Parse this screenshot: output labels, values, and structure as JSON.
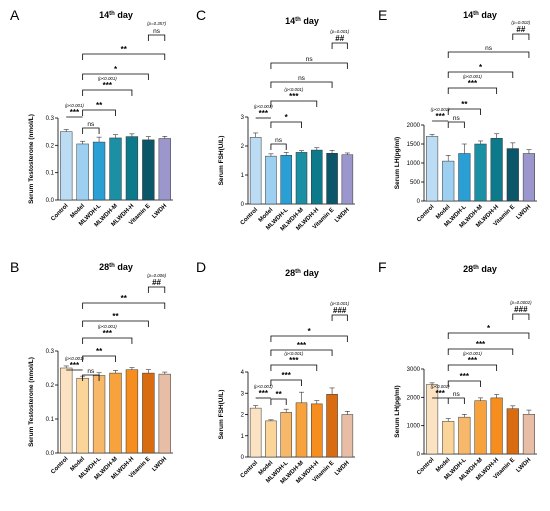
{
  "chart_data": [
    {
      "panel": "A",
      "type": "bar",
      "title": "14th day",
      "title_main": "14",
      "title_sup": "th",
      "title_rest": " day",
      "ylabel": "Serum Testosterone (nmol/L)",
      "categories": [
        "Control",
        "Model",
        "MLWDH-L",
        "MLWDH-M",
        "MLWDH-H",
        "Vitamin E",
        "LWDH"
      ],
      "values": [
        0.25,
        0.205,
        0.212,
        0.227,
        0.232,
        0.22,
        0.225
      ],
      "errors": [
        0.008,
        0.01,
        0.018,
        0.012,
        0.01,
        0.012,
        0.008
      ],
      "ylim": [
        0,
        0.3
      ],
      "yticks": [
        0.0,
        0.1,
        0.2,
        0.3
      ],
      "yticklabels": [
        "0.0",
        "0.1",
        "0.2",
        "0.3"
      ],
      "colors": [
        "#bcdcf4",
        "#9ccff0",
        "#2a9fd6",
        "#1b8fa3",
        "#0d7a8c",
        "#0b5669",
        "#9b97cc"
      ],
      "comparisons": [
        {
          "from": 0,
          "to": 1,
          "text": "***",
          "note": "(p<0.001)"
        },
        {
          "from": 1,
          "to": 2,
          "text": "ns",
          "note": ""
        },
        {
          "from": 1,
          "to": 3,
          "text": "**",
          "note": ""
        },
        {
          "from": 1,
          "to": 4,
          "text": "***",
          "note": "(p<0.001)"
        },
        {
          "from": 1,
          "to": 5,
          "text": "*",
          "note": ""
        },
        {
          "from": 1,
          "to": 6,
          "text": "**",
          "note": ""
        },
        {
          "from": 5,
          "to": 6,
          "text": "ns",
          "note": "(p=0.357)"
        }
      ]
    },
    {
      "panel": "C",
      "type": "bar",
      "title": "14th day",
      "title_main": "14",
      "title_sup": "th",
      "title_rest": " day",
      "ylabel": "Serum FSH(U/L)",
      "categories": [
        "Control",
        "Model",
        "MLWDH-L",
        "MLWDH-M",
        "MLWDH-H",
        "Vitamin E",
        "LWDH"
      ],
      "values": [
        2.3,
        1.65,
        1.68,
        1.78,
        1.86,
        1.75,
        1.7
      ],
      "errors": [
        0.15,
        0.08,
        0.1,
        0.06,
        0.08,
        0.1,
        0.06
      ],
      "ylim": [
        0,
        3
      ],
      "yticks": [
        0,
        1,
        2,
        3
      ],
      "yticklabels": [
        "0",
        "1",
        "2",
        "3"
      ],
      "colors": [
        "#bcdcf4",
        "#9ccff0",
        "#2a9fd6",
        "#1b8fa3",
        "#0d7a8c",
        "#0b5669",
        "#9b97cc"
      ],
      "comparisons": [
        {
          "from": 0,
          "to": 1,
          "text": "***",
          "note": "(p<0.001)"
        },
        {
          "from": 1,
          "to": 2,
          "text": "ns",
          "note": ""
        },
        {
          "from": 1,
          "to": 3,
          "text": "*",
          "note": ""
        },
        {
          "from": 1,
          "to": 4,
          "text": "***",
          "note": "(p<0.001)"
        },
        {
          "from": 1,
          "to": 5,
          "text": "ns",
          "note": ""
        },
        {
          "from": 1,
          "to": 6,
          "text": "ns",
          "note": ""
        },
        {
          "from": 5,
          "to": 6,
          "text": "##",
          "note": "(p=0.001)"
        }
      ]
    },
    {
      "panel": "E",
      "type": "bar",
      "title": "14th day",
      "title_main": "14",
      "title_sup": "th",
      "title_rest": " day",
      "ylabel": "Serum LH(pg/ml)",
      "categories": [
        "Control",
        "Model",
        "MLWDH-L",
        "MLWDH-M",
        "MLWDH-H",
        "Vitamin E",
        "LWDH"
      ],
      "values": [
        1700,
        1050,
        1250,
        1500,
        1650,
        1380,
        1250
      ],
      "errors": [
        50,
        150,
        250,
        80,
        120,
        150,
        100
      ],
      "ylim": [
        0,
        2000
      ],
      "yticks": [
        0,
        500,
        1000,
        1500,
        2000
      ],
      "yticklabels": [
        "0",
        "500",
        "1000",
        "1500",
        "2000"
      ],
      "colors": [
        "#bcdcf4",
        "#9ccff0",
        "#2a9fd6",
        "#1b8fa3",
        "#0d7a8c",
        "#0b5669",
        "#9b97cc"
      ],
      "comparisons": [
        {
          "from": 0,
          "to": 1,
          "text": "***",
          "note": "(p<0.001)"
        },
        {
          "from": 1,
          "to": 2,
          "text": "ns",
          "note": ""
        },
        {
          "from": 1,
          "to": 3,
          "text": "**",
          "note": ""
        },
        {
          "from": 1,
          "to": 4,
          "text": "***",
          "note": "(p<0.001)"
        },
        {
          "from": 1,
          "to": 5,
          "text": "*",
          "note": ""
        },
        {
          "from": 1,
          "to": 6,
          "text": "ns",
          "note": ""
        },
        {
          "from": 5,
          "to": 6,
          "text": "##",
          "note": "(p=0.002)"
        }
      ]
    },
    {
      "panel": "B",
      "type": "bar",
      "title": "28th day",
      "title_main": "28",
      "title_sup": "th",
      "title_rest": " day",
      "ylabel": "Serum Testosterone (nmol/L)",
      "categories": [
        "Control",
        "Model",
        "MLWDH-L",
        "MLWDH-M",
        "MLWDH-H",
        "Vitamin E",
        "LWDH"
      ],
      "values": [
        0.25,
        0.22,
        0.228,
        0.235,
        0.245,
        0.235,
        0.232
      ],
      "errors": [
        0.006,
        0.006,
        0.008,
        0.008,
        0.006,
        0.01,
        0.006
      ],
      "ylim": [
        0,
        0.3
      ],
      "yticks": [
        0.0,
        0.1,
        0.2,
        0.3
      ],
      "yticklabels": [
        "0.0",
        "0.1",
        "0.2",
        "0.3"
      ],
      "colors": [
        "#fbe2c2",
        "#fbd49a",
        "#f8b86a",
        "#f7a23c",
        "#f58d1f",
        "#d96c10",
        "#e7bda6"
      ],
      "comparisons": [
        {
          "from": 0,
          "to": 1,
          "text": "***",
          "note": "(p<0.001)"
        },
        {
          "from": 1,
          "to": 2,
          "text": "ns",
          "note": ""
        },
        {
          "from": 1,
          "to": 3,
          "text": "**",
          "note": ""
        },
        {
          "from": 1,
          "to": 4,
          "text": "***",
          "note": "(p<0.001)"
        },
        {
          "from": 1,
          "to": 5,
          "text": "**",
          "note": ""
        },
        {
          "from": 1,
          "to": 6,
          "text": "**",
          "note": ""
        },
        {
          "from": 5,
          "to": 6,
          "text": "##",
          "note": "(p=0.006)"
        }
      ]
    },
    {
      "panel": "D",
      "type": "bar",
      "title": "28th day",
      "title_main": "28",
      "title_sup": "th",
      "title_rest": " day",
      "ylabel": "Serum FSH(U/L)",
      "categories": [
        "Control",
        "Model",
        "MLWDH-L",
        "MLWDH-M",
        "MLWDH-H",
        "Vitamin E",
        "LWDH"
      ],
      "values": [
        2.3,
        1.7,
        2.1,
        2.55,
        2.5,
        2.95,
        2.0
      ],
      "errors": [
        0.12,
        0.05,
        0.15,
        0.5,
        0.15,
        0.3,
        0.15
      ],
      "ylim": [
        0,
        4
      ],
      "yticks": [
        0,
        1,
        2,
        3,
        4
      ],
      "yticklabels": [
        "0",
        "1",
        "2",
        "3",
        "4"
      ],
      "colors": [
        "#fbe2c2",
        "#fbd49a",
        "#f8b86a",
        "#f7a23c",
        "#f58d1f",
        "#d96c10",
        "#e7bda6"
      ],
      "comparisons": [
        {
          "from": 0,
          "to": 1,
          "text": "***",
          "note": "(p<0.001)"
        },
        {
          "from": 1,
          "to": 2,
          "text": "**",
          "note": ""
        },
        {
          "from": 1,
          "to": 3,
          "text": "***",
          "note": ""
        },
        {
          "from": 1,
          "to": 4,
          "text": "***",
          "note": "(p<0.001)"
        },
        {
          "from": 1,
          "to": 5,
          "text": "***",
          "note": ""
        },
        {
          "from": 1,
          "to": 6,
          "text": "*",
          "note": ""
        },
        {
          "from": 5,
          "to": 6,
          "text": "###",
          "note": "(p<0.001)"
        }
      ]
    },
    {
      "panel": "F",
      "type": "bar",
      "title": "28th day",
      "title_main": "28",
      "title_sup": "th",
      "title_rest": " day",
      "ylabel": "Serum LH(pg/ml)",
      "categories": [
        "Control",
        "Model",
        "MLWDH-L",
        "MLWDH-M",
        "MLWDH-H",
        "Vitamin E",
        "LWDH"
      ],
      "values": [
        2450,
        1150,
        1300,
        1880,
        1980,
        1600,
        1400
      ],
      "errors": [
        60,
        100,
        100,
        100,
        120,
        100,
        150
      ],
      "ylim": [
        0,
        3000
      ],
      "yticks": [
        0,
        1000,
        2000,
        3000
      ],
      "yticklabels": [
        "0",
        "1000",
        "2000",
        "3000"
      ],
      "colors": [
        "#fbe2c2",
        "#fbd49a",
        "#f8b86a",
        "#f7a23c",
        "#f58d1f",
        "#d96c10",
        "#e7bda6"
      ],
      "comparisons": [
        {
          "from": 0,
          "to": 1,
          "text": "***",
          "note": "(p<0.001)"
        },
        {
          "from": 1,
          "to": 2,
          "text": "ns",
          "note": ""
        },
        {
          "from": 1,
          "to": 3,
          "text": "***",
          "note": ""
        },
        {
          "from": 1,
          "to": 4,
          "text": "***",
          "note": "(p<0.001)"
        },
        {
          "from": 1,
          "to": 5,
          "text": "***",
          "note": ""
        },
        {
          "from": 1,
          "to": 6,
          "text": "*",
          "note": ""
        },
        {
          "from": 5,
          "to": 6,
          "text": "###",
          "note": "(p=0.0002)"
        }
      ]
    }
  ]
}
